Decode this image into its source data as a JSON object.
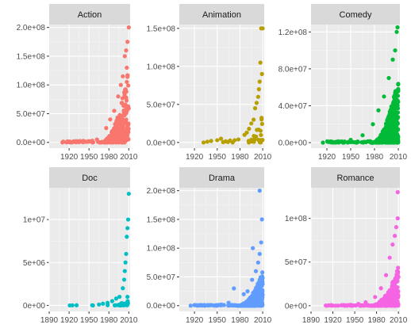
{
  "chart_data": {
    "type": "scatter",
    "layout": "facet-grid-2x3",
    "y_scales": "free",
    "x_scales": "free",
    "grid": true,
    "panels": [
      {
        "strip": "Action",
        "color": "#F8766D",
        "xlim": [
          1890,
          2012
        ],
        "x_ticks": [
          1920,
          1950,
          1980,
          2010
        ],
        "x_tick_labels": [
          "1920",
          "1950",
          "1980",
          "2010"
        ],
        "ylim": [
          -10000000,
          205000000
        ],
        "y_ticks": [
          0,
          50000000,
          100000000,
          150000000,
          200000000
        ],
        "y_tick_labels": [
          "0.0e+00",
          "5.0e+07",
          "1.0e+08",
          "1.5e+08",
          "2.0e+08"
        ],
        "seed": 11,
        "n": 280,
        "x_peak": [
          1965,
          2010
        ],
        "y_peak": 130000000,
        "points": [
          {
            "x": 1910,
            "y": 0
          },
          {
            "x": 1916,
            "y": 200000
          },
          {
            "x": 1924,
            "y": 0
          },
          {
            "x": 1935,
            "y": 500000
          },
          {
            "x": 1945,
            "y": 1000000
          },
          {
            "x": 1955,
            "y": 3000000
          },
          {
            "x": 1962,
            "y": 5000000
          },
          {
            "x": 1976,
            "y": 25000000
          },
          {
            "x": 1982,
            "y": 40000000
          },
          {
            "x": 1988,
            "y": 55000000
          },
          {
            "x": 1994,
            "y": 80000000
          },
          {
            "x": 1998,
            "y": 100000000
          },
          {
            "x": 2001,
            "y": 115000000
          },
          {
            "x": 2004,
            "y": 150000000
          },
          {
            "x": 2006,
            "y": 160000000
          },
          {
            "x": 2008,
            "y": 175000000
          },
          {
            "x": 2010,
            "y": 200000000
          },
          {
            "x": 2007,
            "y": 130000000
          }
        ]
      },
      {
        "strip": "Animation",
        "color": "#B79F00",
        "xlim": [
          1900,
          2012
        ],
        "x_ticks": [
          1920,
          1950,
          1980,
          2010
        ],
        "x_tick_labels": [
          "1920",
          "1950",
          "1980",
          "2010"
        ],
        "ylim": [
          -7500000,
          155000000
        ],
        "y_ticks": [
          0,
          50000000,
          100000000,
          150000000
        ],
        "y_tick_labels": [
          "0.0e+00",
          "5.0e+07",
          "1.0e+08",
          "1.5e+08"
        ],
        "seed": 23,
        "n": 25,
        "x_peak": [
          1985,
          2010
        ],
        "y_peak": 40000000,
        "points": [
          {
            "x": 1932,
            "y": 0
          },
          {
            "x": 1937,
            "y": 1000000
          },
          {
            "x": 1942,
            "y": 2000000
          },
          {
            "x": 1950,
            "y": 3000000
          },
          {
            "x": 1955,
            "y": 5000000
          },
          {
            "x": 1961,
            "y": 1500000
          },
          {
            "x": 1967,
            "y": 2500000
          },
          {
            "x": 1973,
            "y": 3000000
          },
          {
            "x": 1978,
            "y": 4000000
          },
          {
            "x": 1986,
            "y": 10000000
          },
          {
            "x": 1989,
            "y": 13000000
          },
          {
            "x": 1992,
            "y": 18000000
          },
          {
            "x": 1995,
            "y": 25000000
          },
          {
            "x": 1998,
            "y": 30000000
          },
          {
            "x": 2000,
            "y": 45000000
          },
          {
            "x": 2002,
            "y": 52000000
          },
          {
            "x": 2004,
            "y": 60000000
          },
          {
            "x": 2005,
            "y": 70000000
          },
          {
            "x": 2006,
            "y": 80000000
          },
          {
            "x": 2007,
            "y": 105000000
          },
          {
            "x": 2008,
            "y": 150000000
          },
          {
            "x": 2010,
            "y": 150000000
          },
          {
            "x": 2009,
            "y": 90000000
          }
        ]
      },
      {
        "strip": "Comedy",
        "color": "#00BA38",
        "xlim": [
          1900,
          2012
        ],
        "x_ticks": [
          1920,
          1950,
          1980,
          2010
        ],
        "x_tick_labels": [
          "1920",
          "1950",
          "1980",
          "2010"
        ],
        "ylim": [
          -6000000,
          128000000
        ],
        "y_ticks": [
          0,
          40000000,
          80000000,
          120000000
        ],
        "y_tick_labels": [
          "0.0e+00",
          "4.0e+07",
          "8.0e+07",
          "1.2e+08"
        ],
        "seed": 37,
        "n": 420,
        "x_peak": [
          1975,
          2010
        ],
        "y_peak": 75000000,
        "points": [
          {
            "x": 1915,
            "y": 0
          },
          {
            "x": 1925,
            "y": 500000
          },
          {
            "x": 1935,
            "y": 1000000
          },
          {
            "x": 1950,
            "y": 3000000
          },
          {
            "x": 1965,
            "y": 8000000
          },
          {
            "x": 1978,
            "y": 20000000
          },
          {
            "x": 1985,
            "y": 35000000
          },
          {
            "x": 1992,
            "y": 50000000
          },
          {
            "x": 1998,
            "y": 70000000
          },
          {
            "x": 2003,
            "y": 90000000
          },
          {
            "x": 2006,
            "y": 100000000
          },
          {
            "x": 2008,
            "y": 120000000
          },
          {
            "x": 2009,
            "y": 125000000
          }
        ]
      },
      {
        "strip": "Doc",
        "color": "#00BFC4",
        "xlim": [
          1890,
          2012
        ],
        "x_ticks": [
          1890,
          1920,
          1950,
          1980,
          2010
        ],
        "x_tick_labels": [
          "1890",
          "1920",
          "1950",
          "1980",
          "2010"
        ],
        "ylim": [
          -700000,
          13700000
        ],
        "y_ticks": [
          0,
          5000000,
          10000000
        ],
        "y_tick_labels": [
          "0e+00",
          "5e+06",
          "1e+07"
        ],
        "seed": 41,
        "n": 30,
        "x_peak": [
          1985,
          2010
        ],
        "y_peak": 1000000,
        "points": [
          {
            "x": 1921,
            "y": 0
          },
          {
            "x": 1956,
            "y": 0
          },
          {
            "x": 1965,
            "y": 100000
          },
          {
            "x": 1971,
            "y": 200000
          },
          {
            "x": 1978,
            "y": 300000
          },
          {
            "x": 1985,
            "y": 500000
          },
          {
            "x": 1991,
            "y": 800000
          },
          {
            "x": 1996,
            "y": 1000000
          },
          {
            "x": 2001,
            "y": 2000000
          },
          {
            "x": 2003,
            "y": 3000000
          },
          {
            "x": 2004,
            "y": 4000000
          },
          {
            "x": 2005,
            "y": 5000000
          },
          {
            "x": 2006,
            "y": 6000000
          },
          {
            "x": 2007,
            "y": 8000000
          },
          {
            "x": 2008,
            "y": 9000000
          },
          {
            "x": 2009,
            "y": 10000000
          },
          {
            "x": 2010,
            "y": 13000000
          },
          {
            "x": 2008,
            "y": 1000000
          }
        ]
      },
      {
        "strip": "Drama",
        "color": "#619CFF",
        "xlim": [
          1900,
          2012
        ],
        "x_ticks": [
          1920,
          1950,
          1980,
          2010
        ],
        "x_tick_labels": [
          "1920",
          "1950",
          "1980",
          "2010"
        ],
        "ylim": [
          -10000000,
          205000000
        ],
        "y_ticks": [
          0,
          50000000,
          100000000,
          150000000,
          200000000
        ],
        "y_tick_labels": [
          "0.0e+00",
          "5.0e+07",
          "1.0e+08",
          "1.5e+08",
          "2.0e+08"
        ],
        "seed": 53,
        "n": 420,
        "x_peak": [
          1975,
          2010
        ],
        "y_peak": 60000000,
        "points": [
          {
            "x": 1915,
            "y": 0
          },
          {
            "x": 1925,
            "y": 500000
          },
          {
            "x": 1940,
            "y": 1000000
          },
          {
            "x": 1955,
            "y": 2000000
          },
          {
            "x": 1965,
            "y": 5000000
          },
          {
            "x": 1972,
            "y": 30000000
          },
          {
            "x": 1985,
            "y": 20000000
          },
          {
            "x": 1990,
            "y": 25000000
          },
          {
            "x": 1996,
            "y": 45000000
          },
          {
            "x": 1997,
            "y": 100000000
          },
          {
            "x": 2001,
            "y": 60000000
          },
          {
            "x": 2004,
            "y": 75000000
          },
          {
            "x": 2006,
            "y": 90000000
          },
          {
            "x": 2008,
            "y": 110000000
          },
          {
            "x": 2009,
            "y": 150000000
          },
          {
            "x": 2006,
            "y": 200000000
          }
        ]
      },
      {
        "strip": "Romance",
        "color": "#F564E3",
        "xlim": [
          1890,
          2012
        ],
        "x_ticks": [
          1890,
          1920,
          1950,
          1980,
          2010
        ],
        "x_tick_labels": [
          "1890",
          "1920",
          "1950",
          "1980",
          "2010"
        ],
        "ylim": [
          -6500000,
          135000000
        ],
        "y_ticks": [
          0,
          50000000,
          100000000
        ],
        "y_tick_labels": [
          "0e+00",
          "5e+07",
          "1e+08"
        ],
        "seed": 67,
        "n": 300,
        "x_peak": [
          1970,
          2010
        ],
        "y_peak": 45000000,
        "points": [
          {
            "x": 1912,
            "y": 0
          },
          {
            "x": 1920,
            "y": 200000
          },
          {
            "x": 1932,
            "y": 500000
          },
          {
            "x": 1945,
            "y": 1000000
          },
          {
            "x": 1955,
            "y": 2000000
          },
          {
            "x": 1965,
            "y": 4000000
          },
          {
            "x": 1978,
            "y": 10000000
          },
          {
            "x": 1986,
            "y": 20000000
          },
          {
            "x": 1993,
            "y": 35000000
          },
          {
            "x": 1998,
            "y": 55000000
          },
          {
            "x": 2002,
            "y": 70000000
          },
          {
            "x": 2005,
            "y": 80000000
          },
          {
            "x": 2007,
            "y": 90000000
          },
          {
            "x": 2009,
            "y": 100000000
          },
          {
            "x": 2009,
            "y": 130000000
          }
        ]
      }
    ]
  }
}
